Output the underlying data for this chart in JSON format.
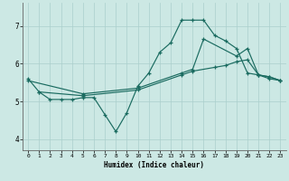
{
  "xlabel": "Humidex (Indice chaleur)",
  "bg_color": "#cce8e4",
  "grid_color": "#aacfcc",
  "line_color": "#1a6b60",
  "xlim": [
    -0.5,
    23.5
  ],
  "ylim": [
    3.7,
    7.6
  ],
  "xticks": [
    0,
    1,
    2,
    3,
    4,
    5,
    6,
    7,
    8,
    9,
    10,
    11,
    12,
    13,
    14,
    15,
    16,
    17,
    18,
    19,
    20,
    21,
    22,
    23
  ],
  "yticks": [
    4,
    5,
    6,
    7
  ],
  "line1_x": [
    0,
    1,
    2,
    3,
    4,
    5,
    6,
    7,
    8,
    9,
    10,
    11,
    12,
    13,
    14,
    15,
    16,
    17,
    18,
    19,
    20,
    21,
    22,
    23
  ],
  "line1_y": [
    5.6,
    5.25,
    5.05,
    5.05,
    5.05,
    5.1,
    5.1,
    4.65,
    4.2,
    4.7,
    5.4,
    5.75,
    6.3,
    6.55,
    7.15,
    7.15,
    7.15,
    6.75,
    6.6,
    6.4,
    5.75,
    5.7,
    5.6,
    5.55
  ],
  "line2_x": [
    0,
    5,
    10,
    14,
    15,
    16,
    19,
    20,
    21,
    22,
    23
  ],
  "line2_y": [
    5.55,
    5.2,
    5.35,
    5.75,
    5.85,
    6.65,
    6.2,
    6.4,
    5.7,
    5.65,
    5.55
  ],
  "line3_x": [
    1,
    5,
    10,
    14,
    15,
    17,
    18,
    19,
    20,
    21,
    22,
    23
  ],
  "line3_y": [
    5.25,
    5.15,
    5.3,
    5.7,
    5.8,
    5.9,
    5.95,
    6.05,
    6.1,
    5.7,
    5.65,
    5.55
  ]
}
